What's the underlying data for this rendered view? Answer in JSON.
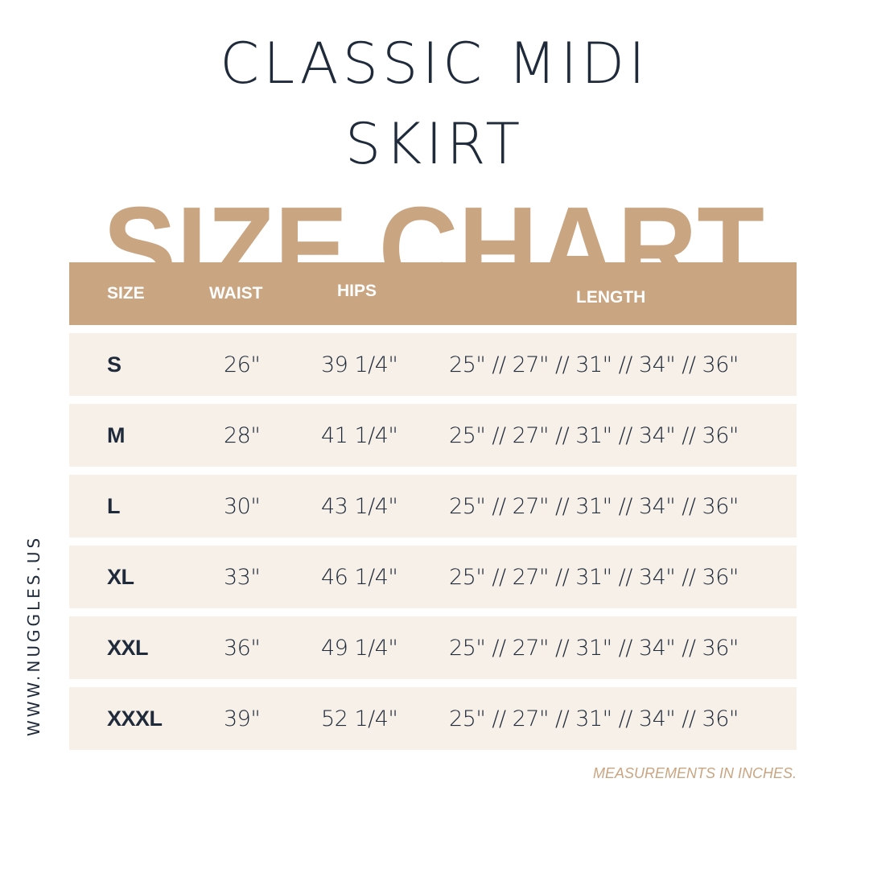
{
  "title_line1": "CLASSIC MIDI",
  "title_line2": "SKIRT",
  "banner": "SIZE CHART",
  "colors": {
    "tan": "#c9a581",
    "row_bg": "#f7f0e8",
    "text": "#1f2a3a"
  },
  "headers": {
    "size": "SIZE",
    "waist": "WAIST",
    "hips": "HIPS",
    "length": "LENGTH"
  },
  "rows": [
    {
      "size": "S",
      "waist": "26\"",
      "hips": "39 1/4\"",
      "length": "25\" // 27\" // 31\" // 34\" // 36\""
    },
    {
      "size": "M",
      "waist": "28\"",
      "hips": "41 1/4\"",
      "length": "25\" // 27\" // 31\" // 34\" // 36\""
    },
    {
      "size": "L",
      "waist": "30\"",
      "hips": "43 1/4\"",
      "length": "25\" // 27\" // 31\" // 34\" // 36\""
    },
    {
      "size": "XL",
      "waist": "33\"",
      "hips": "46 1/4\"",
      "length": "25\" // 27\" // 31\" // 34\" // 36\""
    },
    {
      "size": "XXL",
      "waist": "36\"",
      "hips": "49 1/4\"",
      "length": "25\" // 27\" // 31\" // 34\" // 36\""
    },
    {
      "size": "XXXL",
      "waist": "39\"",
      "hips": "52 1/4\"",
      "length": "25\" // 27\" // 31\" // 34\" // 36\""
    }
  ],
  "website": "WWW.NUGGLES.US",
  "note": "MEASUREMENTS IN INCHES."
}
